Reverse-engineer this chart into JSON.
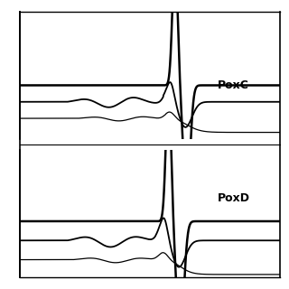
{
  "bg_color": "#ffffff",
  "line_color": "#000000",
  "lw_thick": 1.8,
  "lw_mid": 1.3,
  "lw_thin": 0.9,
  "figsize": [
    3.2,
    3.2
  ],
  "dpi": 100,
  "poxc_label": "PoxC",
  "poxd_label": "PoxD",
  "label_fontsize": 9
}
